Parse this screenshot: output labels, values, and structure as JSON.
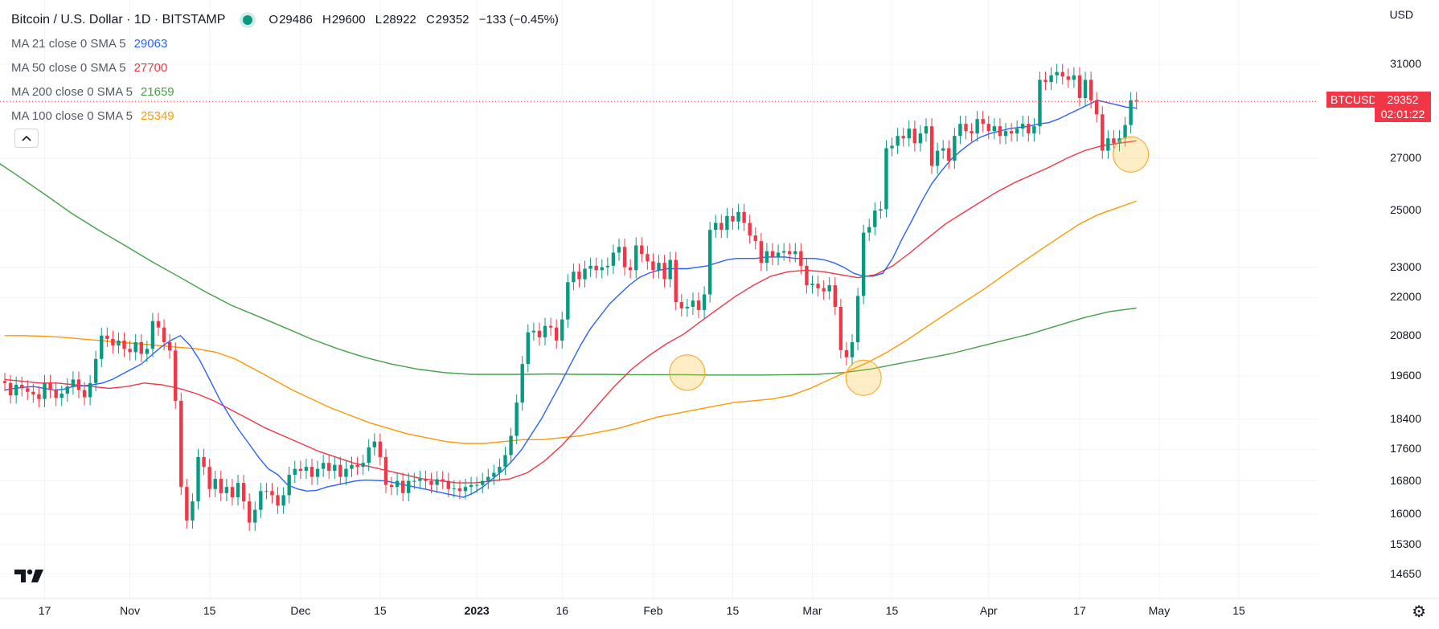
{
  "header": {
    "title": "Bitcoin / U.S. Dollar · 1D · BITSTAMP",
    "ohlc": {
      "o_label": "O",
      "o": "29486",
      "h_label": "H",
      "h": "29600",
      "l_label": "L",
      "l": "28922",
      "c_label": "C",
      "c": "29352",
      "change": "−133 (−0.45%)"
    },
    "currency": "USD"
  },
  "moving_averages": [
    {
      "label": "MA 21 close 0 SMA 5",
      "value": "29063",
      "color": "#2962ff"
    },
    {
      "label": "MA 50 close 0 SMA 5",
      "value": "27700",
      "color": "#f23645"
    },
    {
      "label": "MA 200 close 0 SMA 5",
      "value": "21659",
      "color": "#43a047"
    },
    {
      "label": "MA 100 close 0 SMA 5",
      "value": "25349",
      "color": "#ff9800"
    }
  ],
  "price_label": {
    "symbol": "BTCUSD",
    "price": "29352",
    "countdown": "02:01:22",
    "color": "#f23645"
  },
  "colors": {
    "up": "#089981",
    "down": "#f23645",
    "grid": "#f0f3fa",
    "current_line": "#f23645",
    "highlight": "#fbc02d"
  },
  "icons": {
    "collapse": "chevron-up-icon",
    "logo": "tradingview-logo-icon",
    "settings": "gear-icon"
  },
  "chart_data": {
    "type": "candlestick",
    "symbol": "BTCUSD",
    "interval": "1D",
    "y_scale": "log",
    "ylim": [
      14300,
      32500
    ],
    "y_ticks": [
      "31000",
      "27000",
      "25000",
      "23000",
      "22000",
      "20800",
      "19600",
      "18400",
      "17600",
      "16800",
      "16000",
      "15300",
      "14650"
    ],
    "y_tick_values": [
      31000,
      27000,
      25000,
      23000,
      22000,
      20800,
      19600,
      18400,
      17600,
      16800,
      16000,
      15300,
      14650
    ],
    "x_range": [
      "2022-10-10",
      "2023-05-28"
    ],
    "x_ticks": [
      {
        "date": "2022-10-17",
        "label": "17"
      },
      {
        "date": "2022-11-01",
        "label": "Nov"
      },
      {
        "date": "2022-11-15",
        "label": "15"
      },
      {
        "date": "2022-12-01",
        "label": "Dec"
      },
      {
        "date": "2022-12-15",
        "label": "15"
      },
      {
        "date": "2023-01-01",
        "label": "2023",
        "bold": true
      },
      {
        "date": "2023-01-16",
        "label": "16"
      },
      {
        "date": "2023-02-01",
        "label": "Feb"
      },
      {
        "date": "2023-02-15",
        "label": "15"
      },
      {
        "date": "2023-03-01",
        "label": "Mar"
      },
      {
        "date": "2023-03-15",
        "label": "15"
      },
      {
        "date": "2023-04-01",
        "label": "Apr"
      },
      {
        "date": "2023-04-17",
        "label": "17"
      },
      {
        "date": "2023-05-01",
        "label": "May"
      },
      {
        "date": "2023-05-15",
        "label": "15"
      }
    ],
    "start_date": "2022-10-10",
    "closes": [
      19400,
      19050,
      19350,
      19250,
      19150,
      19080,
      18950,
      19400,
      19200,
      18980,
      19100,
      19300,
      19500,
      19200,
      19000,
      19400,
      20100,
      20800,
      20700,
      20500,
      20650,
      20400,
      20300,
      20600,
      20250,
      20400,
      21250,
      21050,
      20600,
      20350,
      18900,
      16650,
      15850,
      16300,
      17400,
      17150,
      16600,
      16850,
      16500,
      16650,
      16400,
      16750,
      16300,
      15800,
      16100,
      16550,
      16550,
      16450,
      16200,
      16450,
      16950,
      17100,
      17050,
      17150,
      16900,
      17100,
      17250,
      17050,
      17200,
      16900,
      17100,
      17200,
      17150,
      17250,
      17650,
      17800,
      17400,
      16700,
      16650,
      16800,
      16500,
      16800,
      16800,
      16850,
      16800,
      16700,
      16840,
      16800,
      16600,
      16620,
      16550,
      16650,
      16700,
      16700,
      16800,
      16900,
      17000,
      17150,
      17450,
      17950,
      18850,
      19950,
      20900,
      20950,
      20750,
      21100,
      21050,
      20650,
      21300,
      22500,
      22850,
      22600,
      22950,
      23050,
      22900,
      23000,
      23050,
      23500,
      23700,
      23000,
      22900,
      23750,
      23450,
      23200,
      22900,
      23150,
      22600,
      23250,
      21850,
      21650,
      21700,
      21900,
      21600,
      22100,
      24300,
      24550,
      24300,
      24800,
      24600,
      24950,
      24550,
      24100,
      23900,
      23150,
      23550,
      23350,
      23500,
      23550,
      23450,
      23550,
      23050,
      22400,
      22450,
      22300,
      22200,
      22400,
      21700,
      20360,
      20150,
      20600,
      22050,
      24200,
      24400,
      25000,
      25050,
      27400,
      27500,
      27900,
      27800,
      28200,
      27600,
      28000,
      28300,
      26700,
      27300,
      27400,
      26900,
      27900,
      28400,
      28100,
      28000,
      28600,
      28400,
      28100,
      28300,
      27900,
      28100,
      28000,
      28200,
      28400,
      28000,
      28300,
      30300,
      30200,
      30500,
      30650,
      30450,
      30300,
      30500,
      29500,
      30300,
      29400,
      28800,
      27300,
      27800,
      27600,
      27800,
      28350,
      29400,
      29352
    ],
    "ma21": [
      19200,
      19250,
      19280,
      19300,
      19250,
      19200,
      19220,
      19300,
      19320,
      19350,
      19400,
      19500,
      19650,
      19800,
      19950,
      20200,
      20450,
      20650,
      20800,
      20500,
      20050,
      19500,
      18950,
      18500,
      18100,
      17750,
      17400,
      17100,
      16950,
      16700,
      16600,
      16550,
      16570,
      16650,
      16700,
      16750,
      16800,
      16820,
      16810,
      16800,
      16750,
      16700,
      16650,
      16600,
      16550,
      16500,
      16450,
      16400,
      16500,
      16650,
      16850,
      17050,
      17300,
      17600,
      18000,
      18400,
      18900,
      19400,
      19950,
      20500,
      21000,
      21400,
      21800,
      22100,
      22400,
      22650,
      22800,
      22900,
      22950,
      22950,
      22950,
      23000,
      23050,
      23150,
      23250,
      23300,
      23300,
      23300,
      23350,
      23350,
      23350,
      23300,
      23300,
      23300,
      23250,
      23150,
      23000,
      22800,
      22700,
      22700,
      22800,
      23300,
      24000,
      24650,
      25350,
      26000,
      26500,
      26950,
      27300,
      27600,
      27850,
      28000,
      28100,
      28200,
      28250,
      28300,
      28400,
      28450,
      28600,
      28800,
      29000,
      29200,
      29400,
      29300,
      29200,
      29100,
      29063
    ],
    "ma50": [
      19500,
      19450,
      19400,
      19400,
      19350,
      19300,
      19250,
      19300,
      19400,
      19350,
      19250,
      19100,
      18900,
      18650,
      18400,
      18150,
      17950,
      17750,
      17550,
      17400,
      17250,
      17150,
      17050,
      16950,
      16850,
      16800,
      16750,
      16750,
      16800,
      16850,
      17000,
      17300,
      17700,
      18200,
      18750,
      19300,
      19800,
      20200,
      20550,
      20850,
      21250,
      21650,
      22050,
      22400,
      22700,
      22850,
      22900,
      22850,
      22750,
      22650,
      22750,
      23050,
      23500,
      24000,
      24500,
      24900,
      25300,
      25700,
      26050,
      26350,
      26650,
      27000,
      27300,
      27500,
      27600,
      27700
    ],
    "ma100": [
      20800,
      20800,
      20780,
      20750,
      20700,
      20650,
      20600,
      20550,
      20500,
      20450,
      20400,
      20300,
      20100,
      19800,
      19500,
      19200,
      18950,
      18700,
      18500,
      18300,
      18150,
      18000,
      17900,
      17800,
      17750,
      17750,
      17800,
      17850,
      17850,
      17900,
      17950,
      18050,
      18150,
      18300,
      18450,
      18550,
      18650,
      18750,
      18850,
      18900,
      18950,
      19050,
      19250,
      19500,
      19750,
      20000,
      20300,
      20650,
      21050,
      21450,
      21850,
      22250,
      22700,
      23150,
      23600,
      24050,
      24500,
      24850,
      25100,
      25349
    ],
    "ma200": [
      27600,
      27000,
      26300,
      25600,
      24900,
      24300,
      23750,
      23200,
      22700,
      22200,
      21750,
      21400,
      21050,
      20700,
      20400,
      20150,
      19950,
      19800,
      19700,
      19650,
      19650,
      19650,
      19660,
      19650,
      19650,
      19640,
      19640,
      19640,
      19630,
      19630,
      19630,
      19640,
      19650,
      19700,
      19800,
      19950,
      20100,
      20250,
      20450,
      20650,
      20850,
      21100,
      21350,
      21550,
      21659
    ],
    "markers": [
      {
        "date": "2023-02-07",
        "price": 19700
      },
      {
        "date": "2023-03-10",
        "price": 19550
      },
      {
        "date": "2023-04-26",
        "price": 27150
      }
    ]
  }
}
